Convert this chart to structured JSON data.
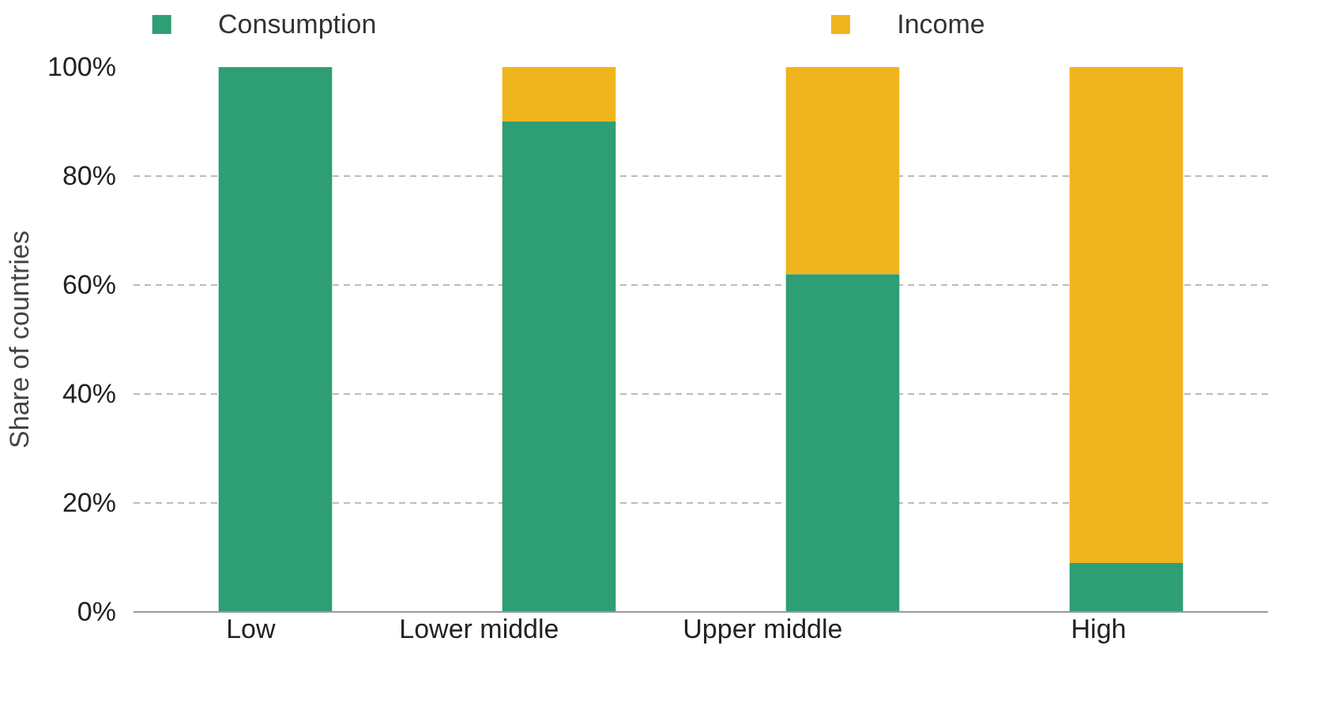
{
  "chart_data": {
    "type": "bar",
    "stacked": true,
    "ylabel": "Share of countries",
    "categories": [
      "Low",
      "Lower middle",
      "Upper middle",
      "High"
    ],
    "series": [
      {
        "name": "Consumption",
        "color": "#2e9e74",
        "values": [
          100,
          90,
          62,
          9
        ]
      },
      {
        "name": "Income",
        "color": "#f0b41c",
        "values": [
          0,
          10,
          38,
          91
        ]
      }
    ],
    "ylim": [
      0,
      100
    ],
    "yticks": [
      {
        "value": 0,
        "label": "0%"
      },
      {
        "value": 20,
        "label": "20%"
      },
      {
        "value": 40,
        "label": "40%"
      },
      {
        "value": 60,
        "label": "60%"
      },
      {
        "value": 80,
        "label": "80%"
      },
      {
        "value": 100,
        "label": "100%"
      }
    ],
    "grid": "y",
    "legend": "top"
  }
}
